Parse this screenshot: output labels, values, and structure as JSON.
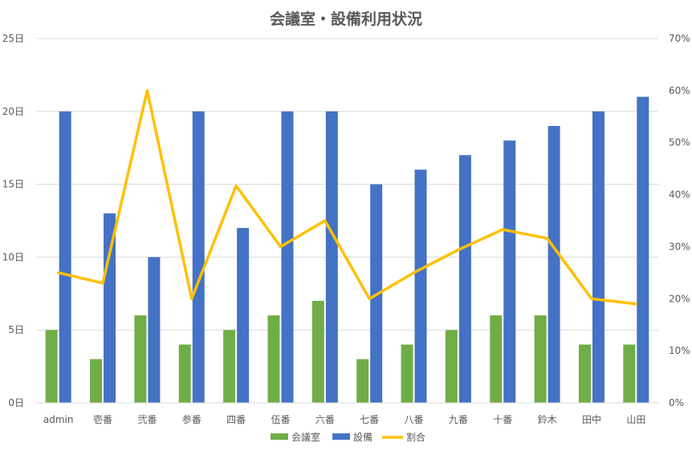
{
  "chart_data": {
    "type": "bar",
    "title": "会議室・設備利用状況",
    "categories": [
      "admin",
      "壱番",
      "弐番",
      "参番",
      "四番",
      "伍番",
      "六番",
      "七番",
      "八番",
      "九番",
      "十番",
      "鈴木",
      "田中",
      "山田"
    ],
    "series": [
      {
        "name": "会議室",
        "type": "bar",
        "axis": "left",
        "color": "#70ad47",
        "values": [
          5,
          3,
          6,
          4,
          5,
          6,
          7,
          3,
          4,
          5,
          6,
          6,
          4,
          4
        ]
      },
      {
        "name": "設備",
        "type": "bar",
        "axis": "left",
        "color": "#4472c4",
        "values": [
          20,
          13,
          10,
          20,
          12,
          20,
          20,
          15,
          16,
          17,
          18,
          19,
          20,
          21
        ]
      },
      {
        "name": "割合",
        "type": "line",
        "axis": "right",
        "color": "#ffc000",
        "values": [
          0.25,
          0.23,
          0.6,
          0.2,
          0.417,
          0.3,
          0.35,
          0.2,
          0.25,
          0.294,
          0.333,
          0.316,
          0.2,
          0.19
        ]
      }
    ],
    "y_left": {
      "min": 0,
      "max": 25,
      "step": 5,
      "tick_labels": [
        "0日",
        "5日",
        "10日",
        "15日",
        "20日",
        "25日"
      ]
    },
    "y_right": {
      "min": 0,
      "max": 0.7,
      "step": 0.1,
      "tick_labels": [
        "0%",
        "10%",
        "20%",
        "30%",
        "40%",
        "50%",
        "60%",
        "70%"
      ]
    },
    "grid": true,
    "legend_position": "bottom"
  }
}
